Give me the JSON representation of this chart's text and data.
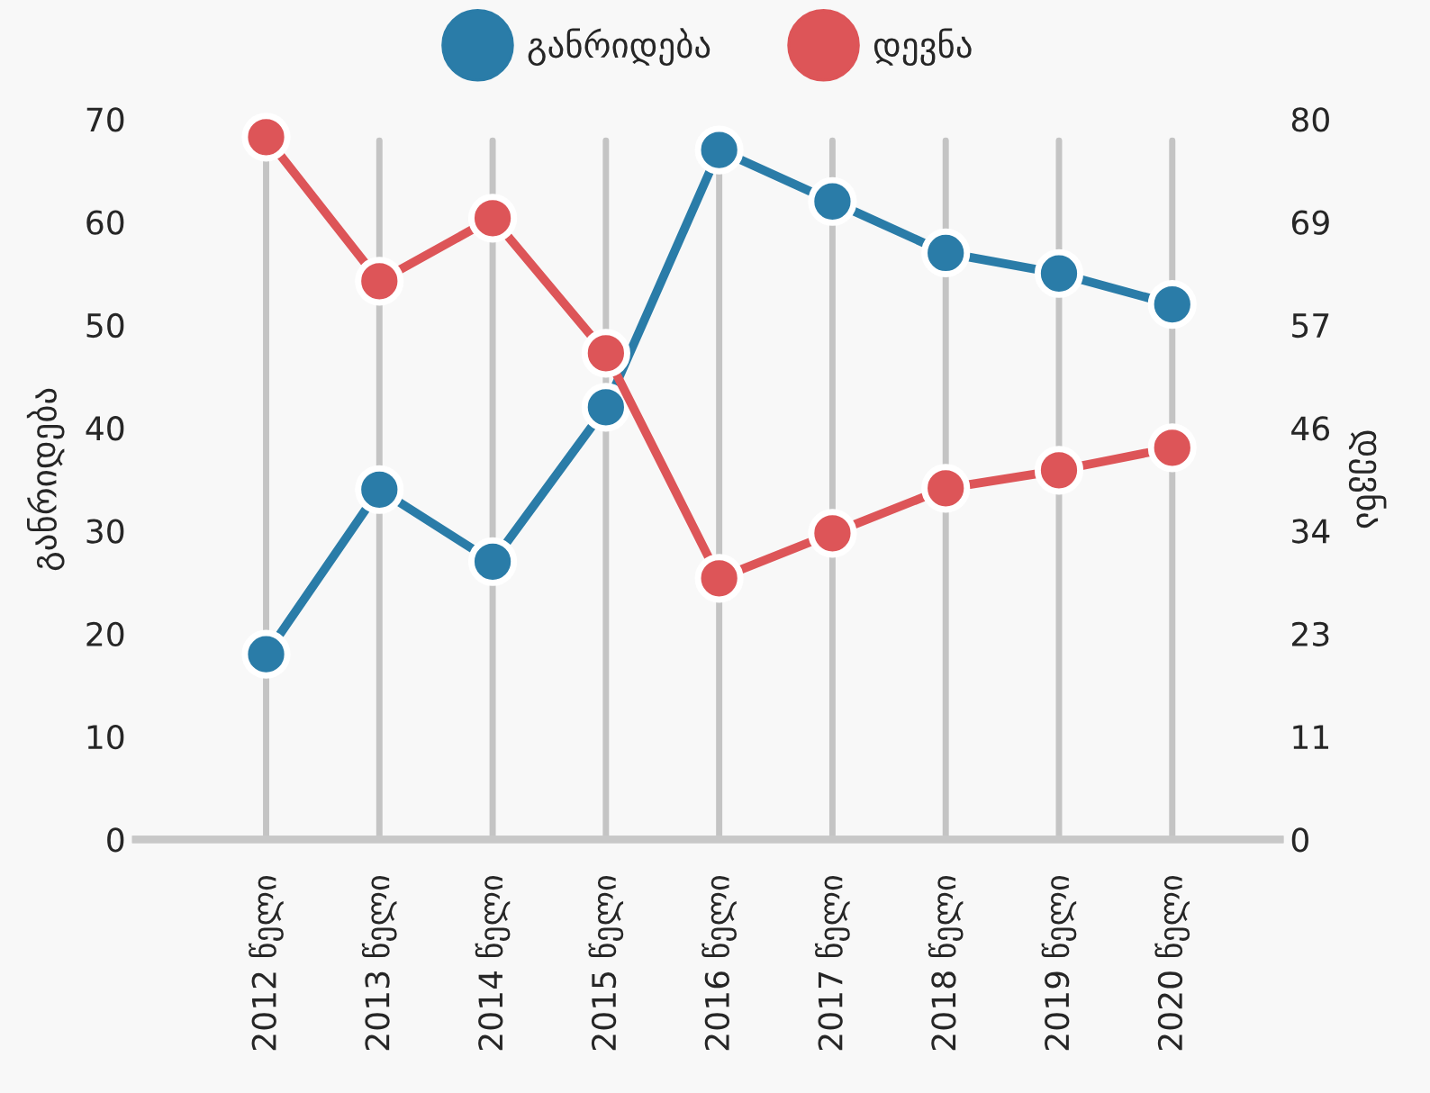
{
  "chart_data": {
    "type": "line",
    "categories": [
      "2012 წელი",
      "2013 წელი",
      "2014 წელი",
      "2015 წელი",
      "2016 წელი",
      "2017 წელი",
      "2018 წელი",
      "2019 წელი",
      "2020 წელი"
    ],
    "series": [
      {
        "name": "განრიდება",
        "color": "#2a7ca8",
        "values": [
          18,
          34,
          27,
          42,
          67,
          62,
          57,
          55,
          52
        ]
      },
      {
        "name": "დევნა",
        "color": "#dd5558",
        "axis": "y2",
        "values": [
          78,
          62,
          69,
          54,
          29,
          34,
          39,
          41,
          43.5
        ]
      }
    ],
    "ylabel": "განრიდება",
    "y2label": "დევნა",
    "ylim": [
      0,
      70
    ],
    "yticks": [
      0,
      10,
      20,
      30,
      40,
      50,
      60,
      70
    ],
    "y2lim": [
      0,
      80
    ],
    "y2ticks": [
      0,
      {
        "value": 11.43,
        "label": "11"
      },
      {
        "value": 22.86,
        "label": "23"
      },
      {
        "value": 34.29,
        "label": "34"
      },
      {
        "value": 45.71,
        "label": "46"
      },
      {
        "value": 57.14,
        "label": "57"
      },
      {
        "value": 68.57,
        "label": "69"
      },
      80
    ],
    "grid": "x",
    "legend": "top",
    "marker": "circle",
    "line_style": "solid"
  }
}
